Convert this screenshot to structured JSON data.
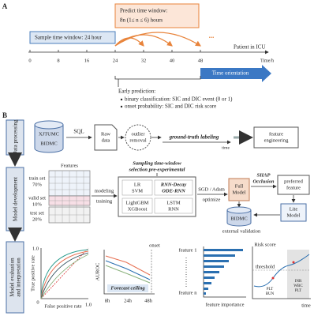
{
  "panel_a": {
    "label": "A",
    "predict_window": [
      "Predict time window:",
      "8n (1≤ n ≤ 6) hours"
    ],
    "sample_window": "Sample time window: 24 hour",
    "ellipsis": "...",
    "patient": "Patient in ICU",
    "axis_unit": "Time/h",
    "ticks": [
      "0",
      "8",
      "16",
      "24",
      "32",
      "40",
      "48"
    ],
    "time_orientation": "Time orientation",
    "early_prediction": {
      "title": "Early prediction:",
      "items": [
        "binary classification:  SIC and DIC event (0 or 1)",
        "onset probability:  SIC and DIC risk score"
      ]
    }
  },
  "panel_b": {
    "label": "B",
    "stages": {
      "data_processing": [
        "Data processing"
      ],
      "model_development": [
        "Model development"
      ],
      "evaluation": [
        "Model evaluation",
        "and interpretation"
      ]
    },
    "row1": {
      "databases": [
        "XJTUMC",
        "BIDMC"
      ],
      "sql": "SQL",
      "raw_data": [
        "Raw",
        "data"
      ],
      "outlier": [
        "outlier",
        "removal"
      ],
      "labeling": "ground-truth labeling",
      "time": "time",
      "feature_engineering": [
        "feature",
        "engineering"
      ]
    },
    "row2": {
      "features": "Features",
      "splits": [
        [
          "train set",
          "70%"
        ],
        [
          "valid set",
          "10%"
        ]
      ],
      "test": [
        "test set",
        "20%"
      ],
      "modeling": "modeling",
      "training": "training",
      "sampling": [
        "Sampling time-window",
        "selection pre-experimental"
      ],
      "models": [
        [
          "LR",
          "SVM"
        ],
        [
          "RNN-Decay",
          "ODE-RNN"
        ],
        [
          "LightGBM",
          "XGBoost"
        ],
        [
          "LSTM",
          "RNN"
        ]
      ],
      "optimizer": "SGD / Adam",
      "optimize": "optimize",
      "full_model": [
        "Full",
        "Model"
      ],
      "explain": [
        "SHAP",
        "Occlusion"
      ],
      "preferred": [
        "preferred",
        "feature"
      ],
      "lite_model": [
        "Lite",
        "Model"
      ],
      "external_db": "BIDMC",
      "external_validation": "external validation"
    },
    "row3": {
      "roc": {
        "y_label": "True positive rate",
        "x_label": "False positive rate",
        "y_top": "1.0",
        "origin": "0",
        "x_right": "1.0"
      },
      "auroc": {
        "y_label": "AUROC",
        "onset": "onset",
        "ceiling": "Forecast ceiling",
        "x_ticks": [
          "8h",
          "24h",
          "48h"
        ]
      },
      "importance": {
        "first": "feature 1",
        "last": "feature n",
        "x_label": "feature importance"
      },
      "risk": {
        "y_label": "Risk score",
        "threshold": "threshold",
        "x_label": "time",
        "early_markers": [
          "PLT",
          "BUN"
        ],
        "late_markers": [
          "INR",
          "WBC",
          "PLT"
        ]
      }
    }
  }
}
